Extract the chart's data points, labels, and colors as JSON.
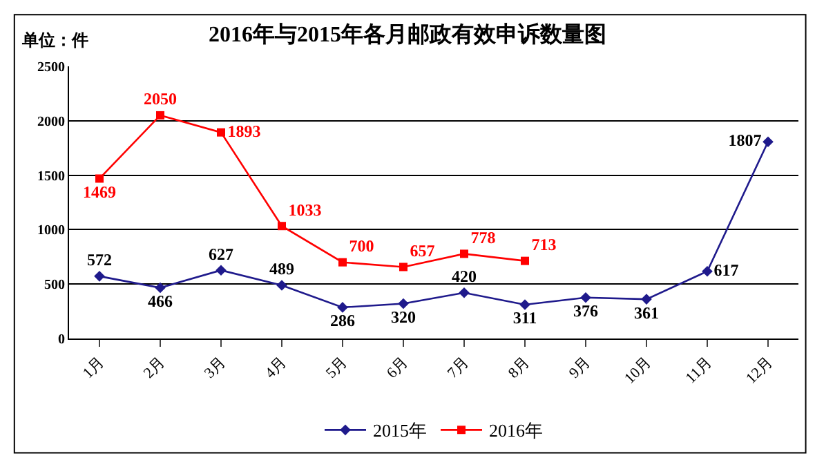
{
  "chart_data": {
    "type": "line",
    "title": "2016年与2015年各月邮政有效申诉数量图",
    "annotations": [
      "单位：件"
    ],
    "categories": [
      "1月",
      "2月",
      "3月",
      "4月",
      "5月",
      "6月",
      "7月",
      "8月",
      "9月",
      "10月",
      "11月",
      "12月"
    ],
    "series": [
      {
        "name": "2015年",
        "color": "#1f1a8c",
        "marker": "diamond",
        "values": [
          572,
          466,
          627,
          489,
          286,
          320,
          420,
          311,
          376,
          361,
          617,
          1807
        ]
      },
      {
        "name": "2016年",
        "color": "#ff0000",
        "marker": "square",
        "values": [
          1469,
          2050,
          1893,
          1033,
          700,
          657,
          778,
          713,
          null,
          null,
          null,
          null
        ]
      }
    ],
    "ylim": [
      0,
      2500
    ],
    "yticks": [
      0,
      500,
      1000,
      1500,
      2000,
      2500
    ],
    "grid": "y",
    "legend": "bottom",
    "data_labels": true,
    "line_style": "solid"
  }
}
